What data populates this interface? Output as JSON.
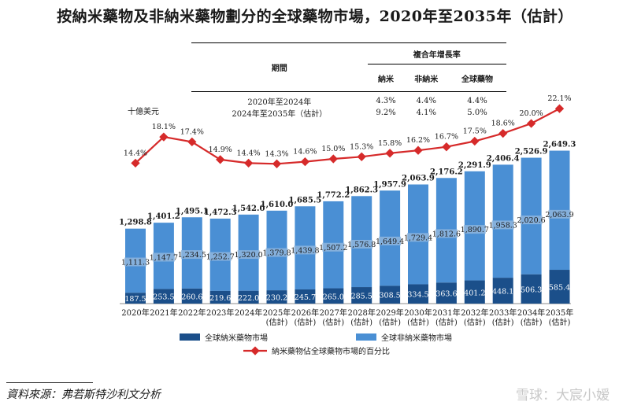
{
  "title": "按納米藥物及非納米藥物劃分的全球藥物市場，2020年至2035年（估計）",
  "cagr_table": {
    "group_header": "複合年增長率",
    "period_header": "期間",
    "columns": [
      "納米",
      "非納米",
      "全球藥物"
    ],
    "rows": [
      {
        "period": "2020年至2024年",
        "values": [
          "4.3%",
          "4.4%",
          "4.4%"
        ]
      },
      {
        "period": "2024年至2035年（估計）",
        "values": [
          "9.2%",
          "4.1%",
          "5.0%"
        ]
      }
    ]
  },
  "unit_label": "十億美元",
  "source": "資料來源：弗若斯特沙利文分析",
  "watermark": "雪球：大宸小嫒",
  "colors": {
    "nano": "#1b4f8a",
    "non_nano": "#4a8fd4",
    "line": "#d62a2a"
  },
  "chart_data": {
    "type": "bar",
    "stacked": true,
    "categories": [
      [
        "2020年"
      ],
      [
        "2021年"
      ],
      [
        "2022年"
      ],
      [
        "2023年"
      ],
      [
        "2024年"
      ],
      [
        "2025年",
        "(估計)"
      ],
      [
        "2026年",
        "(估計)"
      ],
      [
        "2027年",
        "(估計)"
      ],
      [
        "2028年",
        "(估計)"
      ],
      [
        "2029年",
        "(估計)"
      ],
      [
        "2030年",
        "(估計)"
      ],
      [
        "2031年",
        "(估計)"
      ],
      [
        "2032年",
        "(估計)"
      ],
      [
        "2033年",
        "(估計)"
      ],
      [
        "2034年",
        "(估計)"
      ],
      [
        "2035年",
        "(估計)"
      ]
    ],
    "series": [
      {
        "name": "全球納米藥物市場",
        "values": [
          "187.5",
          "253.5",
          "260.6",
          "219.6",
          "222.0",
          "230.2",
          "245.7",
          "265.0",
          "285.5",
          "308.5",
          "334.5",
          "363.6",
          "401.2",
          "448.1",
          "506.3",
          "585.4"
        ]
      },
      {
        "name": "全球非納米藥物市場",
        "values": [
          "1,111.3",
          "1,147.7",
          "1,234.5",
          "1,252.7",
          "1,320.0",
          "1,379.8",
          "1,439.8",
          "1,507.2",
          "1,576.8",
          "1,649.4",
          "1,729.4",
          "1,812.6",
          "1,890.7",
          "1,958.3",
          "2,020.6",
          "2,063.9"
        ]
      }
    ],
    "totals": [
      "1,298.8",
      "1,401.2",
      "1,495.1",
      "1,472.3",
      "1,542.0",
      "1,610.0",
      "1,685.5",
      "1,772.2",
      "1,862.3",
      "1,957.9",
      "2,063.9",
      "2,176.2",
      "2,291.9",
      "2,406.4",
      "2,526.9",
      "2,649.3"
    ],
    "line_series": {
      "name": "納米藥物佔全球藥物市場的百分比",
      "values": [
        "14.4%",
        "18.1%",
        "17.4%",
        "14.9%",
        "14.4%",
        "14.3%",
        "14.6%",
        "15.0%",
        "15.3%",
        "15.8%",
        "16.2%",
        "16.7%",
        "17.5%",
        "18.6%",
        "20.0%",
        "22.1%"
      ]
    },
    "legend_position": "bottom"
  }
}
